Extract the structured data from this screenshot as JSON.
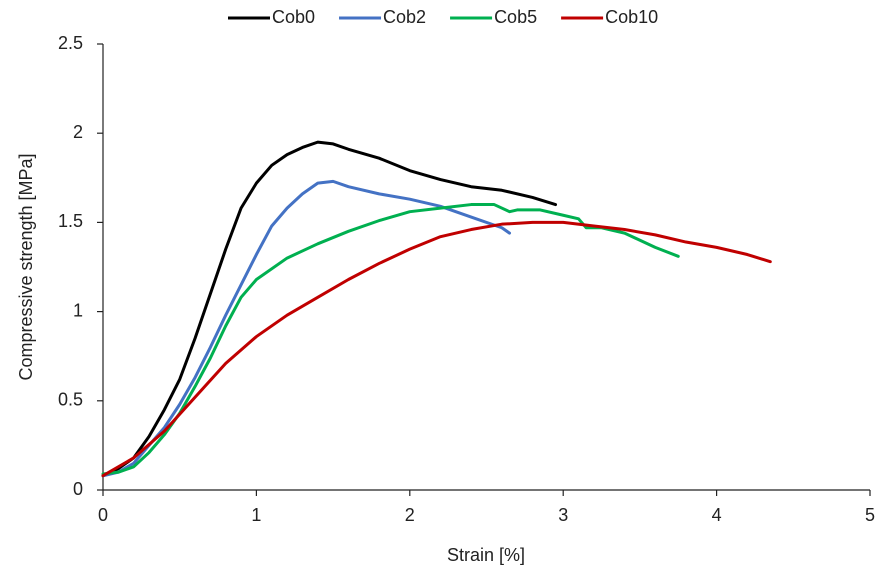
{
  "chart_data": {
    "type": "line",
    "xlabel": "Strain [%]",
    "ylabel": "Compressive strength [MPa]",
    "xlim": [
      0,
      5
    ],
    "xticks": [
      0,
      1,
      2,
      3,
      4,
      5
    ],
    "ylim": [
      0,
      2.5
    ],
    "yticks": [
      0,
      0.5,
      1,
      1.5,
      2,
      2.5
    ],
    "grid": false,
    "legend": "top",
    "series": [
      {
        "name": "Cob0",
        "color": "#000000",
        "x": [
          0,
          0.1,
          0.2,
          0.3,
          0.4,
          0.5,
          0.6,
          0.7,
          0.8,
          0.9,
          1.0,
          1.1,
          1.2,
          1.3,
          1.4,
          1.5,
          1.6,
          1.8,
          2.0,
          2.2,
          2.4,
          2.6,
          2.8,
          2.95
        ],
        "values": [
          0.08,
          0.12,
          0.18,
          0.3,
          0.45,
          0.62,
          0.85,
          1.1,
          1.35,
          1.58,
          1.72,
          1.82,
          1.88,
          1.92,
          1.95,
          1.94,
          1.91,
          1.86,
          1.79,
          1.74,
          1.7,
          1.68,
          1.64,
          1.6
        ]
      },
      {
        "name": "Cob2",
        "color": "#4472c4",
        "x": [
          0,
          0.1,
          0.2,
          0.3,
          0.4,
          0.5,
          0.6,
          0.7,
          0.8,
          0.9,
          1.0,
          1.1,
          1.2,
          1.3,
          1.4,
          1.5,
          1.6,
          1.8,
          2.0,
          2.2,
          2.4,
          2.6,
          2.65
        ],
        "values": [
          0.08,
          0.1,
          0.15,
          0.25,
          0.35,
          0.48,
          0.63,
          0.8,
          0.98,
          1.15,
          1.32,
          1.48,
          1.58,
          1.66,
          1.72,
          1.73,
          1.7,
          1.66,
          1.63,
          1.59,
          1.53,
          1.47,
          1.44
        ]
      },
      {
        "name": "Cob5",
        "color": "#00b050",
        "x": [
          0,
          0.1,
          0.2,
          0.3,
          0.4,
          0.5,
          0.6,
          0.7,
          0.8,
          0.9,
          1.0,
          1.2,
          1.4,
          1.6,
          1.8,
          2.0,
          2.2,
          2.4,
          2.55,
          2.65,
          2.7,
          2.85,
          3.0,
          3.1,
          3.15,
          3.25,
          3.4,
          3.6,
          3.75
        ],
        "values": [
          0.09,
          0.1,
          0.13,
          0.21,
          0.31,
          0.43,
          0.58,
          0.74,
          0.92,
          1.08,
          1.18,
          1.3,
          1.38,
          1.45,
          1.51,
          1.56,
          1.58,
          1.6,
          1.6,
          1.56,
          1.57,
          1.57,
          1.54,
          1.52,
          1.47,
          1.47,
          1.44,
          1.36,
          1.31
        ]
      },
      {
        "name": "Cob10",
        "color": "#c00000",
        "x": [
          0,
          0.2,
          0.4,
          0.6,
          0.8,
          1.0,
          1.2,
          1.4,
          1.6,
          1.8,
          2.0,
          2.2,
          2.4,
          2.6,
          2.8,
          3.0,
          3.2,
          3.4,
          3.6,
          3.8,
          4.0,
          4.2,
          4.35
        ],
        "values": [
          0.08,
          0.18,
          0.33,
          0.52,
          0.71,
          0.86,
          0.98,
          1.08,
          1.18,
          1.27,
          1.35,
          1.42,
          1.46,
          1.49,
          1.5,
          1.5,
          1.48,
          1.46,
          1.43,
          1.39,
          1.36,
          1.32,
          1.28
        ]
      }
    ]
  }
}
